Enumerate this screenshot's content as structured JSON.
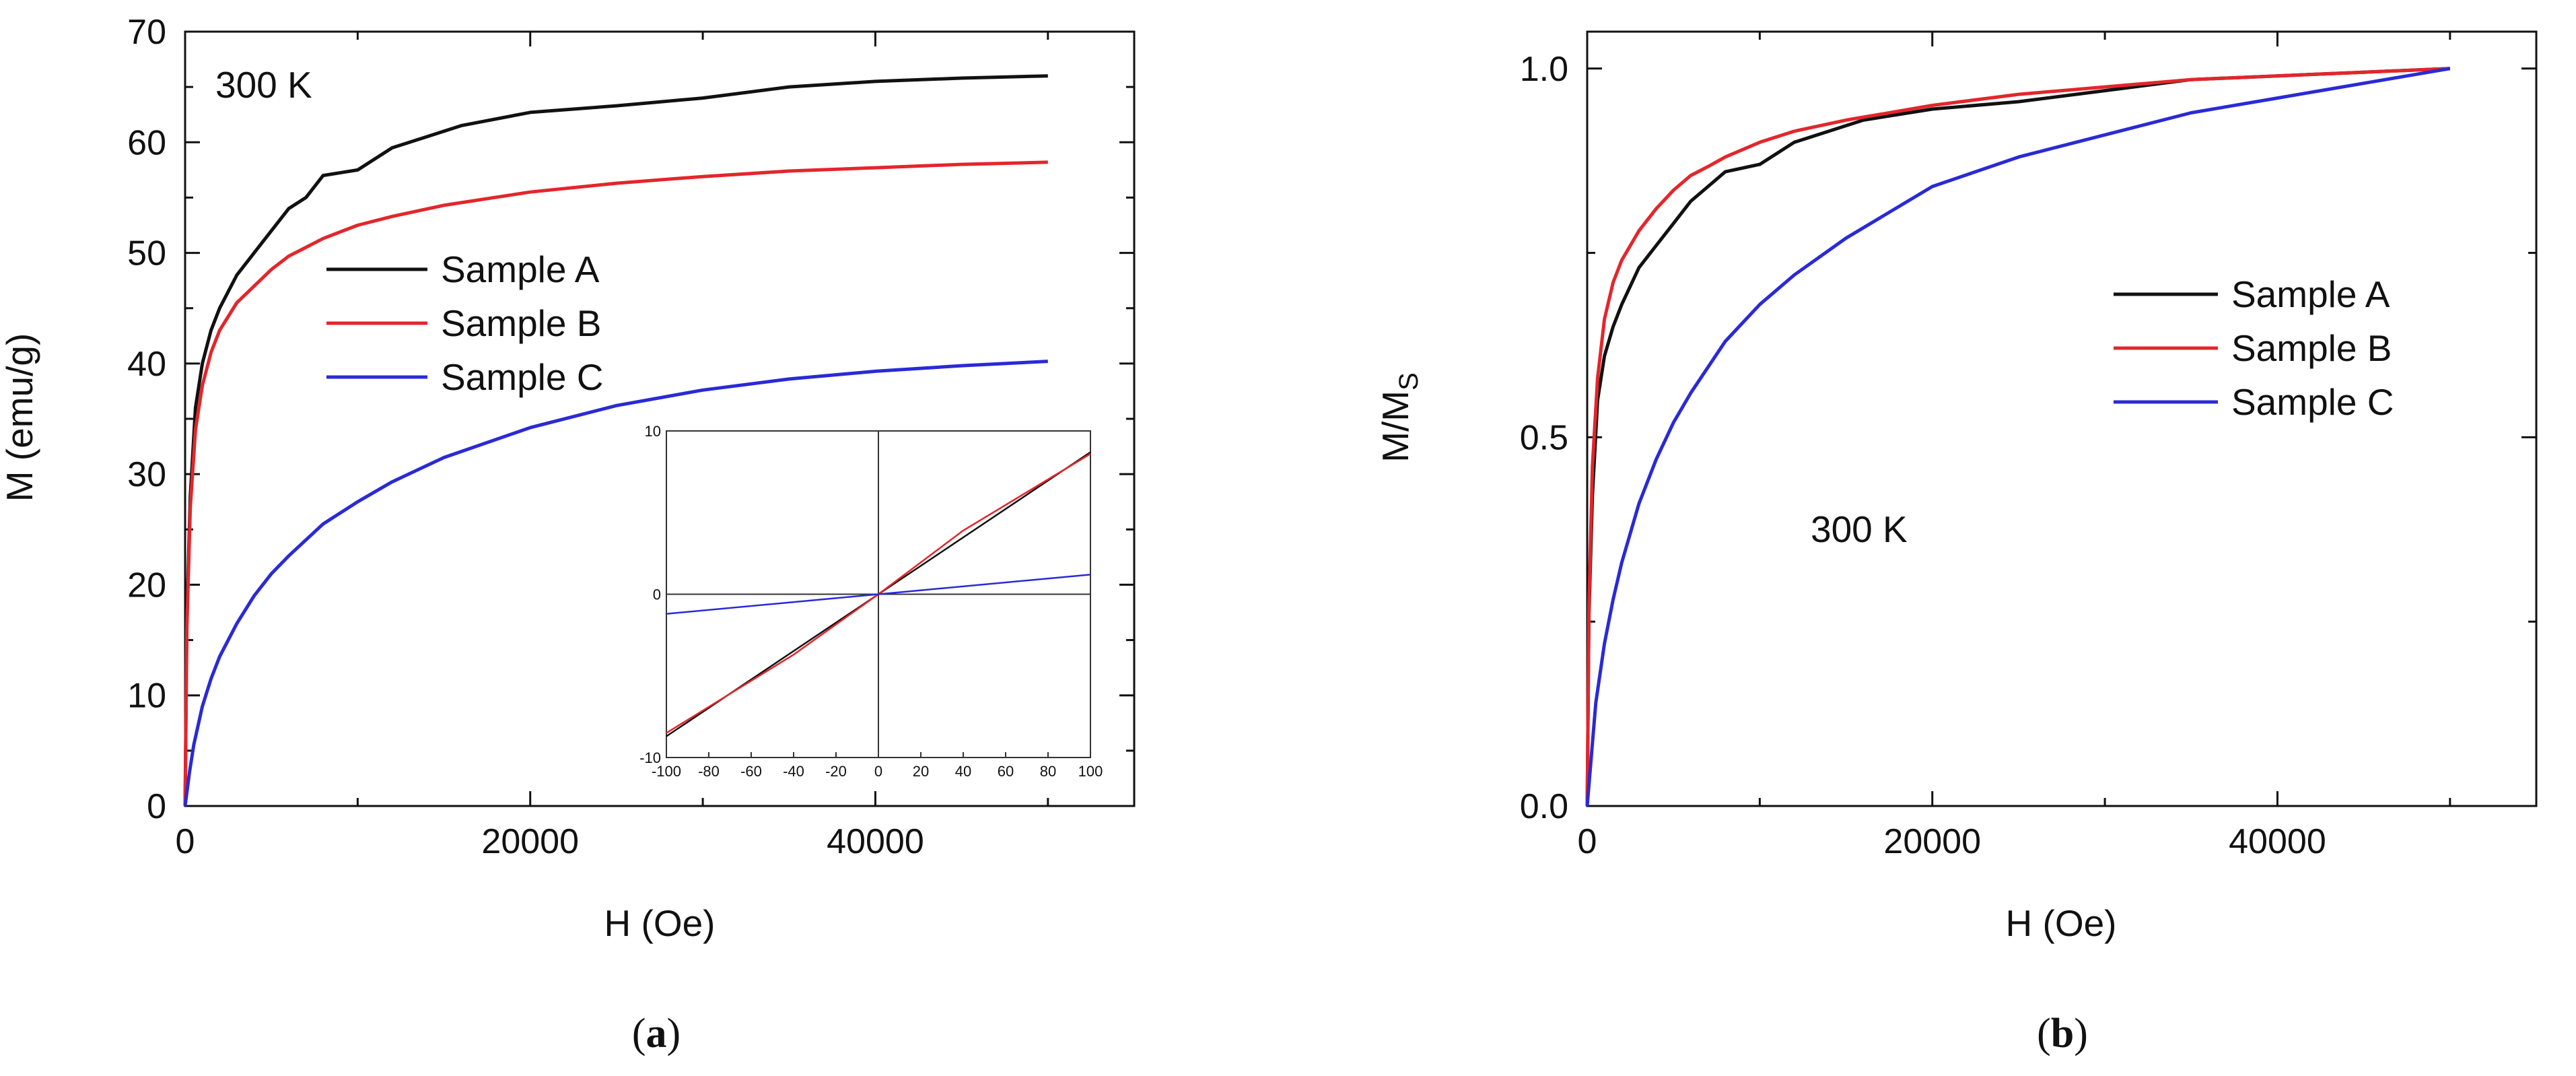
{
  "chart_data": [
    {
      "id": "a",
      "type": "line",
      "panel_label": "a",
      "annotation": "300 K",
      "xlabel": "H (Oe)",
      "ylabel": "M (emu/g)",
      "xlim": [
        0,
        55000
      ],
      "ylim": [
        0,
        70
      ],
      "xticks": [
        0,
        20000,
        40000
      ],
      "yticks": [
        0,
        10,
        20,
        30,
        40,
        50,
        60,
        70
      ],
      "legend_position": "center",
      "colors": {
        "Sample A": "#111111",
        "Sample B": "#e3262b",
        "Sample C": "#2a2ad6"
      },
      "series": [
        {
          "name": "Sample A",
          "x": [
            0,
            100,
            300,
            600,
            1000,
            1500,
            2000,
            3000,
            4000,
            5000,
            6000,
            7000,
            8000,
            10000,
            12000,
            14000,
            16000,
            20000,
            25000,
            30000,
            35000,
            40000,
            45000,
            50000
          ],
          "y": [
            0,
            17,
            28,
            36,
            40,
            43,
            45,
            48,
            50,
            52,
            54,
            55,
            57,
            57.5,
            59.5,
            60.5,
            61.5,
            62.7,
            63.3,
            64,
            65,
            65.5,
            65.8,
            66
          ]
        },
        {
          "name": "Sample B",
          "x": [
            0,
            100,
            300,
            600,
            1000,
            1500,
            2000,
            3000,
            4000,
            5000,
            6000,
            7000,
            8000,
            10000,
            12000,
            15000,
            20000,
            25000,
            30000,
            35000,
            40000,
            45000,
            50000
          ],
          "y": [
            0,
            16,
            27,
            34,
            38,
            41,
            43,
            45.5,
            47,
            48.5,
            49.7,
            50.5,
            51.3,
            52.5,
            53.3,
            54.3,
            55.5,
            56.3,
            56.9,
            57.4,
            57.7,
            58,
            58.2
          ]
        },
        {
          "name": "Sample C",
          "x": [
            0,
            250,
            500,
            1000,
            1500,
            2000,
            3000,
            4000,
            5000,
            6000,
            8000,
            10000,
            12000,
            15000,
            20000,
            25000,
            30000,
            35000,
            40000,
            45000,
            50000
          ],
          "y": [
            0,
            3,
            5.5,
            9,
            11.5,
            13.5,
            16.5,
            19,
            21,
            22.6,
            25.5,
            27.5,
            29.3,
            31.5,
            34.2,
            36.2,
            37.6,
            38.6,
            39.3,
            39.8,
            40.2
          ]
        }
      ],
      "inset": {
        "xlim": [
          -100,
          100
        ],
        "ylim": [
          -10,
          10
        ],
        "xticks": [
          -100,
          -80,
          -60,
          -40,
          -20,
          0,
          20,
          40,
          60,
          80,
          100
        ],
        "yticks": [
          -10,
          0,
          10
        ],
        "series": [
          {
            "name": "Sample A",
            "x": [
              -100,
              0,
              100
            ],
            "y": [
              -8.7,
              0,
              8.7
            ]
          },
          {
            "name": "Sample B",
            "x": [
              -100,
              -40,
              0,
              40,
              100
            ],
            "y": [
              -8.5,
              -3.7,
              0,
              3.9,
              8.6
            ]
          },
          {
            "name": "Sample C",
            "x": [
              -100,
              0,
              100
            ],
            "y": [
              -1.2,
              0,
              1.2
            ]
          }
        ]
      }
    },
    {
      "id": "b",
      "type": "line",
      "panel_label": "b",
      "annotation": "300 K",
      "xlabel": "H (Oe)",
      "ylabel": "M/M",
      "ylabel_sub": "S",
      "xlim": [
        0,
        55000
      ],
      "ylim": [
        0,
        1.05
      ],
      "xticks": [
        0,
        20000,
        40000
      ],
      "yticks": [
        0.0,
        0.5,
        1.0
      ],
      "ytick_labels": [
        "0.0",
        "0.5",
        "1.0"
      ],
      "legend_position": "right",
      "colors": {
        "Sample A": "#111111",
        "Sample B": "#e3262b",
        "Sample C": "#2a2ad6"
      },
      "series": [
        {
          "name": "Sample A",
          "x": [
            0,
            100,
            300,
            600,
            1000,
            1500,
            2000,
            3000,
            4000,
            5000,
            6000,
            7000,
            8000,
            10000,
            12000,
            14000,
            16000,
            20000,
            25000,
            30000,
            35000,
            40000,
            45000,
            50000
          ],
          "y": [
            0,
            0.26,
            0.42,
            0.55,
            0.61,
            0.65,
            0.68,
            0.73,
            0.76,
            0.79,
            0.82,
            0.84,
            0.86,
            0.87,
            0.9,
            0.915,
            0.93,
            0.945,
            0.955,
            0.97,
            0.985,
            0.99,
            0.995,
            1.0
          ]
        },
        {
          "name": "Sample B",
          "x": [
            0,
            100,
            300,
            600,
            1000,
            1500,
            2000,
            3000,
            4000,
            5000,
            6000,
            7000,
            8000,
            10000,
            12000,
            15000,
            20000,
            25000,
            30000,
            35000,
            40000,
            45000,
            50000
          ],
          "y": [
            0,
            0.27,
            0.46,
            0.58,
            0.66,
            0.71,
            0.74,
            0.78,
            0.81,
            0.835,
            0.855,
            0.867,
            0.88,
            0.9,
            0.915,
            0.93,
            0.95,
            0.965,
            0.975,
            0.985,
            0.99,
            0.995,
            1.0
          ]
        },
        {
          "name": "Sample C",
          "x": [
            0,
            250,
            500,
            1000,
            1500,
            2000,
            3000,
            4000,
            5000,
            6000,
            8000,
            10000,
            12000,
            15000,
            20000,
            25000,
            30000,
            35000,
            40000,
            45000,
            50000
          ],
          "y": [
            0,
            0.07,
            0.14,
            0.22,
            0.28,
            0.33,
            0.41,
            0.47,
            0.52,
            0.56,
            0.63,
            0.68,
            0.72,
            0.77,
            0.84,
            0.88,
            0.91,
            0.94,
            0.96,
            0.98,
            1.0
          ]
        }
      ]
    }
  ]
}
